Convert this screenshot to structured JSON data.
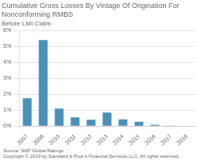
{
  "chart_data": {
    "type": "bar",
    "title": "Cumulative Gross Losses By Vintage Of Origination For Nonconforming RMBS",
    "subtitle": "Before LMI Claim",
    "categories": [
      "2007",
      "2008",
      "2010",
      "2011",
      "2012",
      "2013",
      "2014",
      "2015",
      "2016",
      "2017",
      "2018"
    ],
    "values": [
      1.75,
      5.4,
      1.1,
      0.55,
      0.4,
      0.85,
      0.42,
      0.27,
      0.08,
      0.04,
      0.02
    ],
    "color": "#4a90b8",
    "ylim": [
      0,
      6
    ],
    "yticks": [
      {
        "value": 0,
        "label": "0%"
      },
      {
        "value": 1,
        "label": "1%"
      },
      {
        "value": 2,
        "label": "2%"
      },
      {
        "value": 3,
        "label": "3%"
      },
      {
        "value": 4,
        "label": "4%"
      },
      {
        "value": 5,
        "label": "5%"
      },
      {
        "value": 6,
        "label": "6%"
      }
    ],
    "grid": true,
    "annotations": [
      "Source: S&P Global Ratings.",
      "Copyright © 2019 by Standard & Poor’s Financial Services LLC. All rights reserved."
    ]
  }
}
